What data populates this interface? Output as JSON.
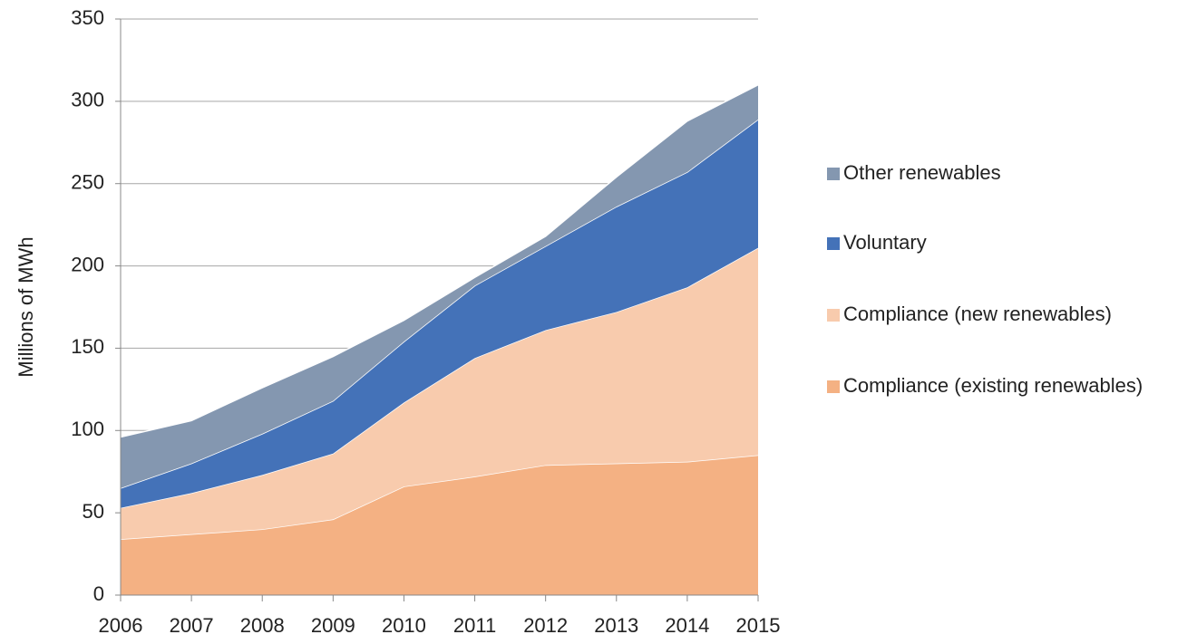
{
  "chart_data": {
    "type": "stacked_area",
    "y_axis_label": "Millions of MWh",
    "categories": [
      "2006",
      "2007",
      "2008",
      "2009",
      "2010",
      "2011",
      "2012",
      "2013",
      "2014",
      "2015"
    ],
    "series": [
      {
        "name": "Compliance (existing renewables)",
        "color": "#f4b183",
        "values": [
          34,
          37,
          40,
          46,
          66,
          72,
          79,
          80,
          81,
          85
        ]
      },
      {
        "name": "Compliance (new renewables)",
        "color": "#f8cbad",
        "values": [
          19,
          25,
          33,
          40,
          51,
          72,
          82,
          92,
          106,
          126
        ]
      },
      {
        "name": "Voluntary",
        "color": "#4472b8",
        "values": [
          12,
          18,
          25,
          32,
          37,
          44,
          51,
          64,
          70,
          78
        ]
      },
      {
        "name": "Other renewables",
        "color": "#8497b0",
        "values": [
          31,
          26,
          28,
          27,
          13,
          5,
          6,
          18,
          31,
          21
        ]
      }
    ],
    "ylim": [
      0,
      350
    ],
    "yticks": [
      0,
      50,
      100,
      150,
      200,
      250,
      300,
      350
    ],
    "grid": true,
    "legend": "right"
  }
}
